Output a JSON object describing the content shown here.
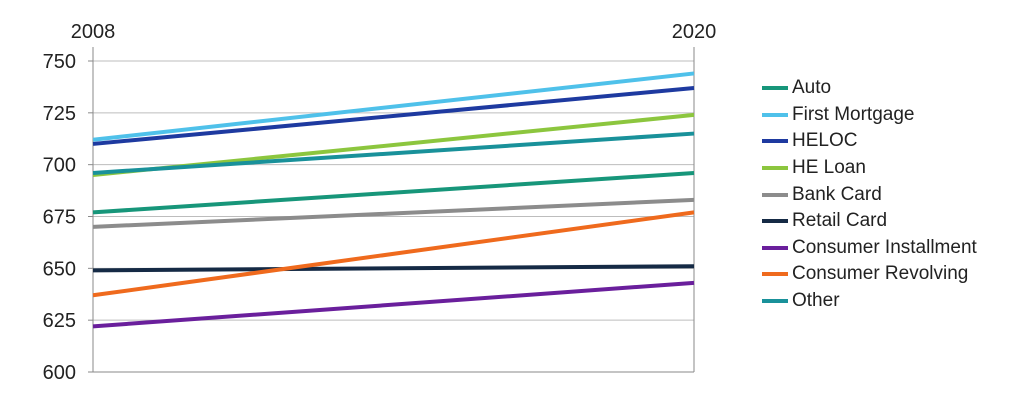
{
  "chart_data": {
    "type": "line",
    "title": "",
    "xlabel": "",
    "ylabel": "",
    "x": [
      "2008",
      "2020"
    ],
    "x_tick_labels": [
      "2008",
      "2020"
    ],
    "y_tick_labels": [
      "600",
      "625",
      "650",
      "675",
      "700",
      "725",
      "750"
    ],
    "ylim": [
      600,
      750
    ],
    "grid": true,
    "legend_position": "right",
    "series": [
      {
        "name": "Auto",
        "color": "#17967a",
        "values": [
          677,
          696
        ]
      },
      {
        "name": "First Mortgage",
        "color": "#4fc1ea",
        "values": [
          712,
          744
        ]
      },
      {
        "name": "HELOC",
        "color": "#1e3aa0",
        "values": [
          710,
          737
        ]
      },
      {
        "name": "HE Loan",
        "color": "#8cc63e",
        "values": [
          695,
          724
        ]
      },
      {
        "name": "Bank Card",
        "color": "#8c8c8c",
        "values": [
          670,
          683
        ]
      },
      {
        "name": "Retail Card",
        "color": "#152a45",
        "values": [
          649,
          651
        ]
      },
      {
        "name": "Consumer Installment",
        "color": "#6a1f9c",
        "values": [
          622,
          643
        ]
      },
      {
        "name": "Consumer Revolving",
        "color": "#ef6a1d",
        "values": [
          637,
          677
        ]
      },
      {
        "name": "Other",
        "color": "#19919a",
        "values": [
          696,
          715
        ]
      }
    ]
  }
}
